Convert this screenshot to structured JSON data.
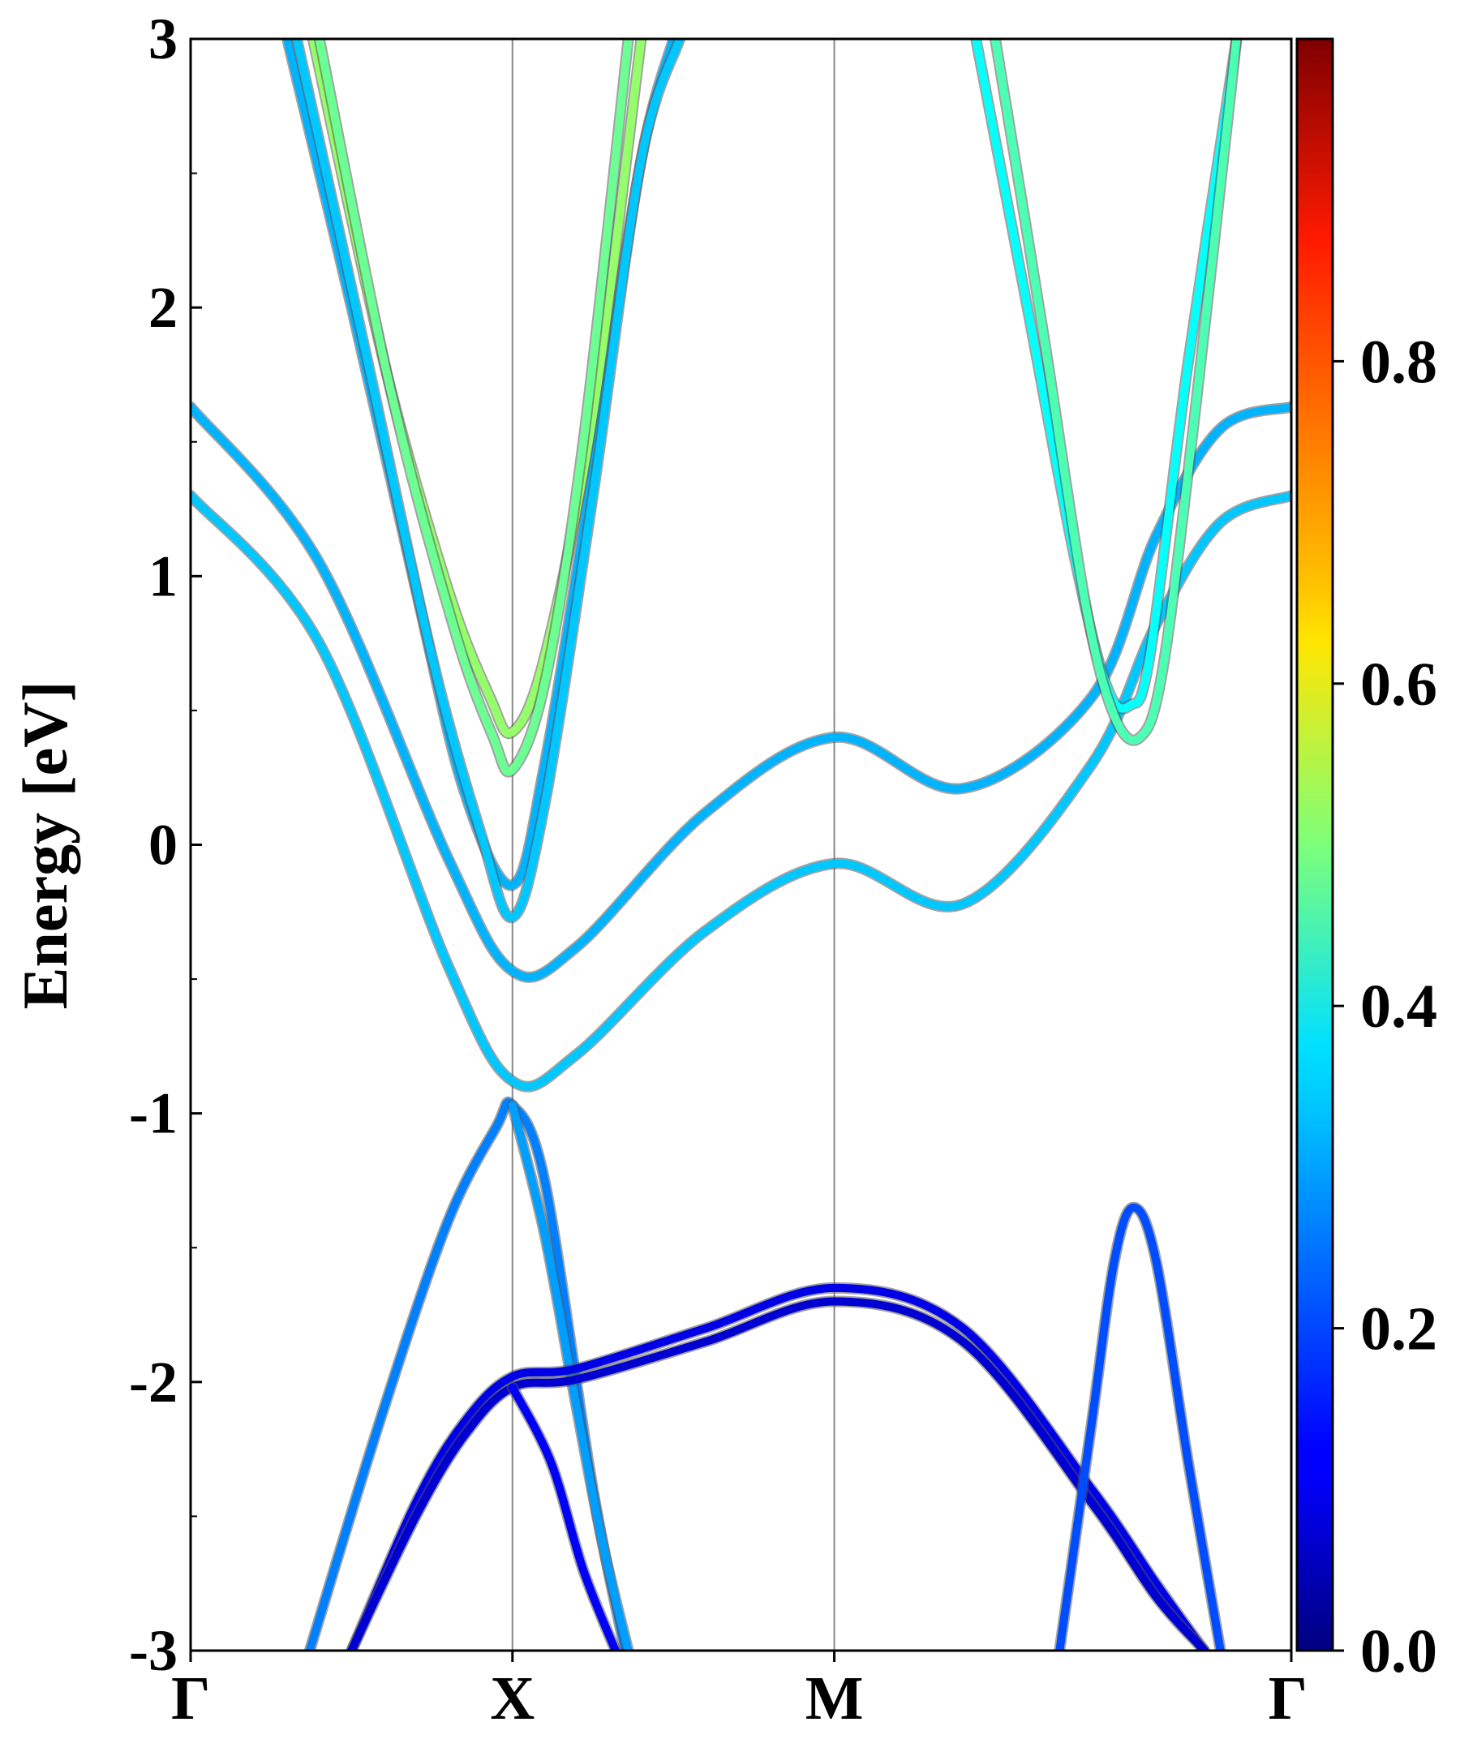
{
  "chart_data": {
    "type": "line",
    "title": "",
    "ylabel": "Energy [eV]",
    "xlabel": "",
    "ylim": [
      -3,
      3
    ],
    "yticks": [
      "3",
      "2",
      "1",
      "0",
      "-1",
      "-2",
      "-3"
    ],
    "k_points": [
      "Γ",
      "X",
      "M",
      "Γ"
    ],
    "k_positions": [
      0,
      1,
      2,
      3.42
    ],
    "grid": "vertical lines at high-symmetry points",
    "colorbar": {
      "colormap": "jet",
      "range": [
        0,
        1
      ],
      "ticks": [
        "0.0",
        "0.2",
        "0.4",
        "0.6",
        "0.8"
      ],
      "tick_values": [
        0,
        0.2,
        0.4,
        0.6,
        0.8
      ]
    },
    "series": [
      {
        "weight": 0.3,
        "x": [
          0,
          0.4,
          0.8,
          1.0,
          1.2,
          1.6,
          2.0,
          2.4,
          2.8,
          3.0,
          3.2,
          3.42
        ],
        "y": [
          1.63,
          1.05,
          -0.05,
          -0.47,
          -0.38,
          0.12,
          0.4,
          0.21,
          0.55,
          1.15,
          1.55,
          1.63
        ]
      },
      {
        "weight": 0.32,
        "x": [
          0,
          0.4,
          0.8,
          1.0,
          1.2,
          1.6,
          2.0,
          2.4,
          2.8,
          3.0,
          3.2,
          3.42
        ],
        "y": [
          1.3,
          0.75,
          -0.45,
          -0.88,
          -0.78,
          -0.32,
          -0.07,
          -0.22,
          0.3,
          0.82,
          1.2,
          1.3
        ]
      },
      {
        "weight": 0.3,
        "x": [
          0.3,
          0.5,
          0.7,
          0.85,
          1.0,
          1.1,
          1.25,
          1.4,
          1.5
        ],
        "y": [
          3.0,
          2.0,
          0.95,
          0.2,
          -0.15,
          0.3,
          1.4,
          2.55,
          3.0
        ]
      },
      {
        "weight": 0.32,
        "x": [
          0.33,
          0.55,
          0.75,
          0.9,
          1.0,
          1.1,
          1.25,
          1.4,
          1.52
        ],
        "y": [
          3.0,
          1.8,
          0.7,
          0.05,
          -0.27,
          0.15,
          1.3,
          2.55,
          3.0
        ]
      },
      {
        "weight": 0.52,
        "x": [
          0.38,
          0.6,
          0.8,
          0.93,
          1.0,
          1.1,
          1.25,
          1.4
        ],
        "y": [
          3.0,
          1.8,
          0.95,
          0.55,
          0.42,
          0.7,
          1.6,
          3.0
        ]
      },
      {
        "weight": 0.48,
        "x": [
          0.4,
          0.62,
          0.82,
          0.94,
          1.0,
          1.1,
          1.22,
          1.36
        ],
        "y": [
          3.0,
          1.7,
          0.8,
          0.4,
          0.28,
          0.6,
          1.5,
          3.0
        ]
      },
      {
        "weight": 0.25,
        "x": [
          0.37,
          0.6,
          0.8,
          0.95,
          1.0,
          1.1,
          1.25,
          1.35
        ],
        "y": [
          -3.0,
          -2.1,
          -1.4,
          -1.05,
          -0.97,
          -1.25,
          -2.4,
          -3.0
        ]
      },
      {
        "weight": 0.28,
        "x": [
          1.0,
          1.1,
          1.2,
          1.28,
          1.36
        ],
        "y": [
          -0.97,
          -1.45,
          -2.1,
          -2.6,
          -3.0
        ]
      },
      {
        "weight": 0.1,
        "x": [
          0.5,
          0.7,
          0.85,
          1.0,
          1.2,
          1.6,
          2.0,
          2.4,
          2.8,
          3.0,
          3.15
        ],
        "y": [
          -3.0,
          -2.45,
          -2.15,
          -1.98,
          -1.95,
          -1.8,
          -1.65,
          -1.8,
          -2.4,
          -2.75,
          -3.0
        ]
      },
      {
        "weight": 0.08,
        "x": [
          0.5,
          0.7,
          0.85,
          1.0,
          1.2,
          1.6,
          2.0,
          2.4,
          2.8,
          3.0,
          3.15
        ],
        "y": [
          -3.0,
          -2.5,
          -2.2,
          -2.02,
          -1.99,
          -1.85,
          -1.7,
          -1.85,
          -2.45,
          -2.8,
          -3.0
        ]
      },
      {
        "weight": 0.12,
        "x": [
          1.0,
          1.12,
          1.22,
          1.32
        ],
        "y": [
          -2.02,
          -2.3,
          -2.7,
          -3.0
        ]
      },
      {
        "weight": 0.2,
        "x": [
          2.7,
          2.8,
          2.87,
          2.93,
          3.0,
          3.1,
          3.2
        ],
        "y": [
          -3.0,
          -2.15,
          -1.55,
          -1.35,
          -1.55,
          -2.3,
          -3.0
        ]
      },
      {
        "weight": 0.38,
        "x": [
          2.44,
          2.6,
          2.75,
          2.85,
          2.92,
          2.98,
          3.1,
          3.25
        ],
        "y": [
          3.0,
          2.0,
          1.05,
          0.58,
          0.52,
          0.7,
          1.8,
          3.0
        ]
      },
      {
        "weight": 0.45,
        "x": [
          2.5,
          2.65,
          2.78,
          2.87,
          2.95,
          3.02,
          3.12,
          3.25
        ],
        "y": [
          3.0,
          1.9,
          0.9,
          0.48,
          0.4,
          0.65,
          1.6,
          3.0
        ]
      }
    ]
  }
}
